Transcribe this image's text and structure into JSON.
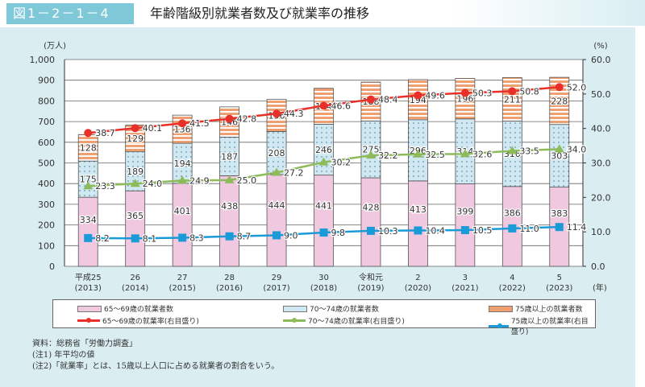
{
  "header": {
    "figure_number": "図1－2－1－4",
    "title": "年齢階級別就業者数及び就業率の推移"
  },
  "chart_data": {
    "type": "bar+line",
    "categories": [
      [
        "平成25",
        "(2013)"
      ],
      [
        "26",
        "(2014)"
      ],
      [
        "27",
        "(2015)"
      ],
      [
        "28",
        "(2016)"
      ],
      [
        "29",
        "(2017)"
      ],
      [
        "30",
        "(2018)"
      ],
      [
        "令和元",
        "(2019)"
      ],
      [
        "2",
        "(2020)"
      ],
      [
        "3",
        "(2021)"
      ],
      [
        "4",
        "(2022)"
      ],
      [
        "5",
        "(2023)"
      ]
    ],
    "x_unit": "(年)",
    "left_axis": {
      "label": "(万人)",
      "range": [
        0,
        1000
      ],
      "ticks": [
        "0",
        "100",
        "200",
        "300",
        "400",
        "500",
        "600",
        "700",
        "800",
        "900",
        "1,000"
      ]
    },
    "right_axis": {
      "label": "(%)",
      "range": [
        0,
        60
      ],
      "ticks": [
        "0.0",
        "10.0",
        "20.0",
        "30.0",
        "40.0",
        "50.0",
        "60.0"
      ]
    },
    "grid": true,
    "legend_placement": "bottom",
    "bars": [
      {
        "name": "65～69歳の就業者数",
        "color": "#f0c8e0",
        "values": [
          334,
          365,
          401,
          438,
          444,
          441,
          428,
          413,
          399,
          386,
          383
        ]
      },
      {
        "name": "70～74歳の就業者数",
        "color": "#cfe8f2",
        "values": [
          175,
          189,
          194,
          187,
          208,
          246,
          275,
          296,
          314,
          316,
          303
        ]
      },
      {
        "name": "75歳以上の就業者数",
        "color": "#f0a070",
        "values": [
          128,
          129,
          136,
          146,
          156,
          174,
          188,
          194,
          196,
          211,
          228
        ]
      }
    ],
    "lines": [
      {
        "name": "65～69歳の就業率(右目盛り)",
        "color": "#e8302a",
        "marker": "circle",
        "values": [
          38.7,
          40.1,
          41.5,
          42.8,
          44.3,
          46.6,
          48.4,
          49.6,
          50.3,
          50.8,
          52.0
        ]
      },
      {
        "name": "70～74歳の就業率(右目盛り)",
        "color": "#8dbb5a",
        "marker": "triangle",
        "values": [
          23.3,
          24.0,
          24.9,
          25.0,
          27.2,
          30.2,
          32.2,
          32.5,
          32.6,
          33.5,
          34.0
        ]
      },
      {
        "name": "75歳以上の就業率(右目盛り)",
        "color": "#1a9ad6",
        "marker": "square",
        "values": [
          8.2,
          8.1,
          8.3,
          8.7,
          9.0,
          9.8,
          10.3,
          10.4,
          10.5,
          11.0,
          11.4
        ]
      }
    ]
  },
  "notes": [
    "資料：総務省「労働力調査」",
    "(注1) 年平均の値",
    "(注2)「就業率」とは、15歳以上人口に占める就業者の割合をいう。"
  ]
}
